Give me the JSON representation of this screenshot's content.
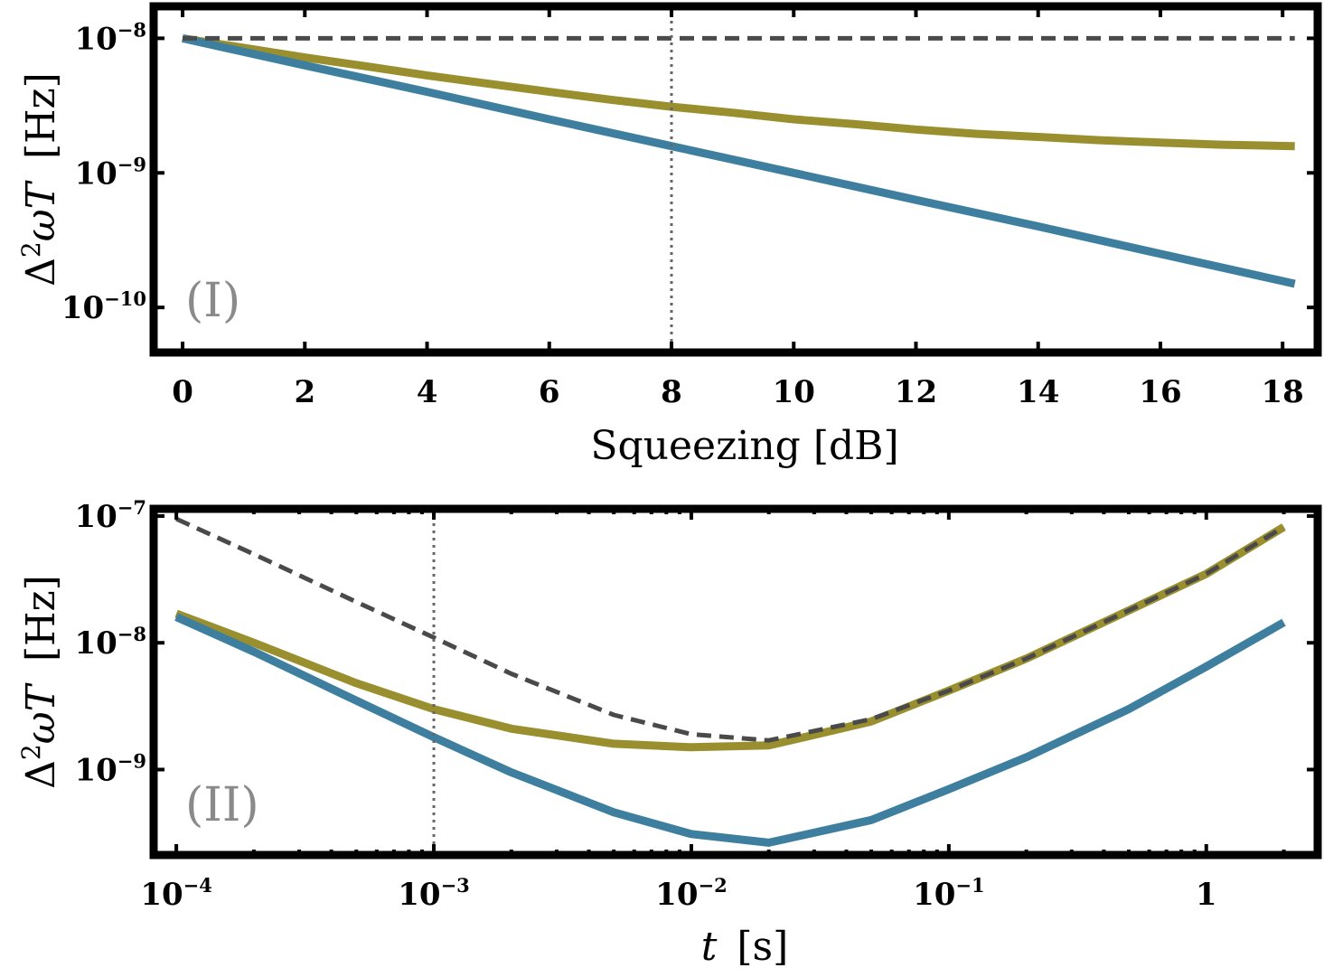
{
  "colors": {
    "blue": "#3e7fa0",
    "olive": "#9a8f2e",
    "dashed": "#4a4a4a",
    "dotted": "#666666",
    "panel_label": "#8a8a8a"
  },
  "chart_data": [
    {
      "type": "line",
      "panel_label": "(I)",
      "xlabel": "Squeezing [dB]",
      "ylabel": "Δ²ωT [Hz]",
      "x_scale": "linear",
      "y_scale": "log",
      "xlim": [
        -0.4,
        18.5
      ],
      "ylim": [
        5e-11,
        1.6e-08
      ],
      "x_ticks": [
        {
          "value": 0,
          "label": "0"
        },
        {
          "value": 2,
          "label": "2"
        },
        {
          "value": 4,
          "label": "4"
        },
        {
          "value": 6,
          "label": "6"
        },
        {
          "value": 8,
          "label": "8"
        },
        {
          "value": 10,
          "label": "10"
        },
        {
          "value": 12,
          "label": "12"
        },
        {
          "value": 14,
          "label": "14"
        },
        {
          "value": 16,
          "label": "16"
        },
        {
          "value": 18,
          "label": "18"
        }
      ],
      "y_ticks": [
        {
          "value": 1e-08,
          "base": "10",
          "exp": "−8"
        },
        {
          "value": 1e-09,
          "base": "10",
          "exp": "−9"
        },
        {
          "value": 1e-10,
          "base": "10",
          "exp": "−10"
        }
      ],
      "vline": {
        "x": 8,
        "style": "dotted"
      },
      "series": [
        {
          "style": "dashed",
          "color": "#4a4a4a",
          "x": [
            0,
            4,
            8,
            12,
            16,
            18.2
          ],
          "y": [
            1e-08,
            1e-08,
            1e-08,
            1e-08,
            1e-08,
            1e-08
          ]
        },
        {
          "style": "solid",
          "color": "#9a8f2e",
          "x": [
            0,
            1,
            2,
            3,
            4,
            5,
            6,
            7,
            8,
            9,
            10,
            11,
            12,
            13,
            14,
            15,
            16,
            17,
            18.2
          ],
          "y": [
            1e-08,
            8.5e-09,
            7.2e-09,
            6.2e-09,
            5.3e-09,
            4.6e-09,
            4e-09,
            3.5e-09,
            3.1e-09,
            2.8e-09,
            2.5e-09,
            2.3e-09,
            2.1e-09,
            1.95e-09,
            1.85e-09,
            1.75e-09,
            1.68e-09,
            1.62e-09,
            1.58e-09
          ]
        },
        {
          "style": "solid",
          "color": "#3e7fa0",
          "x": [
            0,
            2,
            4,
            6,
            8,
            10,
            12,
            14,
            16,
            18.2
          ],
          "y": [
            1e-08,
            6.3e-09,
            4e-09,
            2.5e-09,
            1.58e-09,
            1e-09,
            6.3e-10,
            4e-10,
            2.5e-10,
            1.5e-10
          ]
        }
      ]
    },
    {
      "type": "line",
      "panel_label": "(II)",
      "xlabel": "t [s]",
      "ylabel": "Δ²ωT [Hz]",
      "x_scale": "log",
      "y_scale": "log",
      "xlim": [
        8.5e-05,
        2.6
      ],
      "ylim": [
        2.3e-10,
        1.05e-07
      ],
      "x_ticks": [
        {
          "value": 0.0001,
          "base": "10",
          "exp": "−4"
        },
        {
          "value": 0.001,
          "base": "10",
          "exp": "−3"
        },
        {
          "value": 0.01,
          "base": "10",
          "exp": "−2"
        },
        {
          "value": 0.1,
          "base": "10",
          "exp": "−1"
        },
        {
          "value": 1,
          "base": "1",
          "exp": ""
        }
      ],
      "y_ticks": [
        {
          "value": 1e-07,
          "base": "10",
          "exp": "−7"
        },
        {
          "value": 1e-08,
          "base": "10",
          "exp": "−8"
        },
        {
          "value": 1e-09,
          "base": "10",
          "exp": "−9"
        }
      ],
      "vline": {
        "x": 0.001,
        "style": "dotted"
      },
      "series": [
        {
          "style": "dashed",
          "color": "#4a4a4a",
          "x": [
            0.0001,
            0.0002,
            0.0005,
            0.001,
            0.002,
            0.005,
            0.01,
            0.02,
            0.05,
            0.1,
            0.2,
            0.5,
            1,
            2
          ],
          "y": [
            9.5e-08,
            5e-08,
            2.1e-08,
            1.1e-08,
            5.7e-09,
            2.7e-09,
            1.9e-09,
            1.7e-09,
            2.5e-09,
            4.2e-09,
            7.5e-09,
            1.8e-08,
            3.5e-08,
            8.2e-08
          ]
        },
        {
          "style": "solid",
          "color": "#9a8f2e",
          "x": [
            0.0001,
            0.0002,
            0.0005,
            0.001,
            0.002,
            0.005,
            0.01,
            0.02,
            0.05,
            0.1,
            0.2,
            0.5,
            1,
            2
          ],
          "y": [
            1.7e-08,
            1e-08,
            4.8e-09,
            3e-09,
            2.1e-09,
            1.6e-09,
            1.5e-09,
            1.55e-09,
            2.4e-09,
            4.2e-09,
            7.5e-09,
            1.8e-08,
            3.5e-08,
            8.2e-08
          ]
        },
        {
          "style": "solid",
          "color": "#3e7fa0",
          "x": [
            0.0001,
            0.0002,
            0.0005,
            0.001,
            0.002,
            0.005,
            0.01,
            0.02,
            0.05,
            0.1,
            0.2,
            0.5,
            1,
            2
          ],
          "y": [
            1.6e-08,
            8.5e-09,
            3.5e-09,
            1.8e-09,
            9.5e-10,
            4.6e-10,
            3.1e-10,
            2.65e-10,
            4e-10,
            7e-10,
            1.25e-09,
            3e-09,
            6.5e-09,
            1.45e-08
          ]
        }
      ]
    }
  ]
}
